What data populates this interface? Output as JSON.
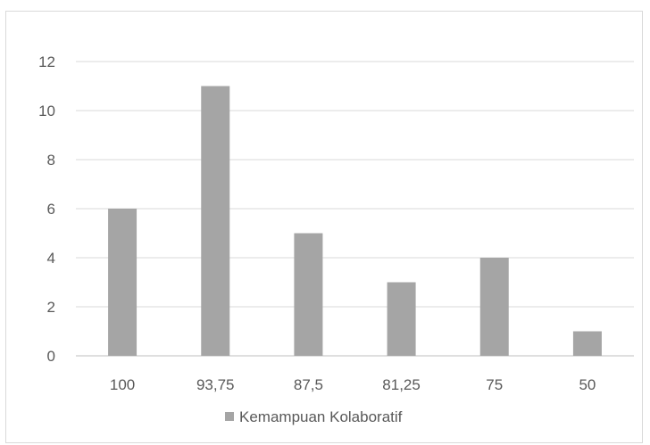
{
  "chart_data": {
    "type": "bar",
    "categories": [
      "100",
      "93,75",
      "87,5",
      "81,25",
      "75",
      "50"
    ],
    "series": [
      {
        "name": "Kemampuan Kolaboratif",
        "values": [
          6,
          11,
          5,
          3,
          4,
          1
        ],
        "color": "#a5a5a5"
      }
    ],
    "ylim": [
      0,
      12
    ],
    "yticks": [
      0,
      2,
      4,
      6,
      8,
      10,
      12
    ],
    "grid": true,
    "legend_position": "bottom"
  }
}
